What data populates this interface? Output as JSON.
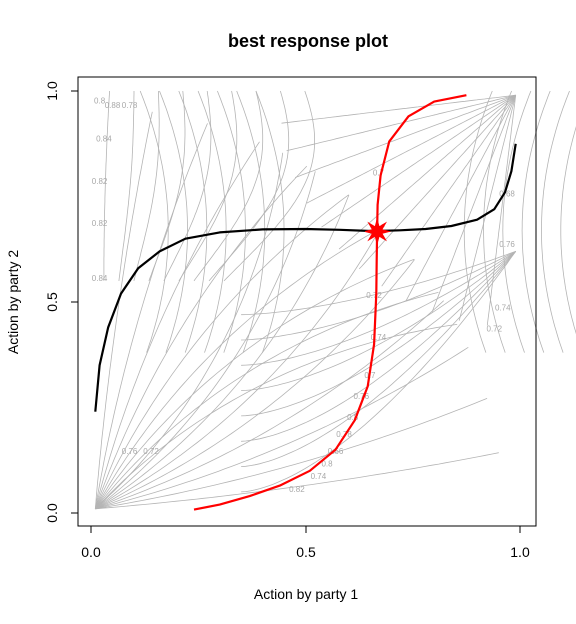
{
  "chart_data": {
    "type": "line",
    "title": "best response plot",
    "xlabel": "Action by party 1",
    "ylabel": "Action by party 2",
    "xlim": [
      0,
      1
    ],
    "ylim": [
      0,
      1
    ],
    "x_ticks": [
      "0.0",
      "0.5",
      "1.0"
    ],
    "y_ticks": [
      "0.0",
      "0.5",
      "1.0"
    ],
    "grid": false,
    "legend": "none",
    "colors": {
      "contour": "#b4b4b4",
      "best_response_1": "#000000",
      "best_response_2": "#ff0000",
      "equilibrium": "#ff0000"
    },
    "contour_labels": [
      {
        "text": "0.8",
        "x": 0.02,
        "y": 0.97
      },
      {
        "text": "0.88",
        "x": 0.05,
        "y": 0.96
      },
      {
        "text": "0.78",
        "x": 0.09,
        "y": 0.96
      },
      {
        "text": "0.84",
        "x": 0.03,
        "y": 0.88
      },
      {
        "text": "0.82",
        "x": 0.02,
        "y": 0.78
      },
      {
        "text": "0.82",
        "x": 0.02,
        "y": 0.68
      },
      {
        "text": "0.84",
        "x": 0.02,
        "y": 0.55
      },
      {
        "text": "0.76",
        "x": 0.09,
        "y": 0.14
      },
      {
        "text": "0.72",
        "x": 0.14,
        "y": 0.14
      },
      {
        "text": "0.7",
        "x": 0.67,
        "y": 0.8
      },
      {
        "text": "0.72",
        "x": 0.66,
        "y": 0.51
      },
      {
        "text": "0.74",
        "x": 0.67,
        "y": 0.41
      },
      {
        "text": "0.7",
        "x": 0.65,
        "y": 0.32
      },
      {
        "text": "0.76",
        "x": 0.63,
        "y": 0.27
      },
      {
        "text": "0.8",
        "x": 0.61,
        "y": 0.22
      },
      {
        "text": "0.78",
        "x": 0.59,
        "y": 0.18
      },
      {
        "text": "0.66",
        "x": 0.57,
        "y": 0.14
      },
      {
        "text": "0.8",
        "x": 0.55,
        "y": 0.11
      },
      {
        "text": "0.74",
        "x": 0.53,
        "y": 0.08
      },
      {
        "text": "0.82",
        "x": 0.48,
        "y": 0.05
      },
      {
        "text": "0.68",
        "x": 0.97,
        "y": 0.75
      },
      {
        "text": "0.76",
        "x": 0.97,
        "y": 0.63
      },
      {
        "text": "0.74",
        "x": 0.96,
        "y": 0.48
      },
      {
        "text": "0.72",
        "x": 0.94,
        "y": 0.43
      }
    ],
    "series": [
      {
        "points": [
          [
            0.01,
            0.24
          ],
          [
            0.02,
            0.35
          ],
          [
            0.04,
            0.44
          ],
          [
            0.07,
            0.52
          ],
          [
            0.11,
            0.58
          ],
          [
            0.16,
            0.62
          ],
          [
            0.22,
            0.65
          ],
          [
            0.3,
            0.665
          ],
          [
            0.4,
            0.672
          ],
          [
            0.5,
            0.673
          ],
          [
            0.58,
            0.671
          ],
          [
            0.66,
            0.668
          ],
          [
            0.72,
            0.67
          ],
          [
            0.78,
            0.673
          ],
          [
            0.84,
            0.68
          ],
          [
            0.9,
            0.695
          ],
          [
            0.94,
            0.72
          ],
          [
            0.965,
            0.76
          ],
          [
            0.98,
            0.81
          ],
          [
            0.99,
            0.875
          ]
        ]
      },
      {
        "points": [
          [
            0.24,
            0.008
          ],
          [
            0.3,
            0.02
          ],
          [
            0.37,
            0.04
          ],
          [
            0.44,
            0.065
          ],
          [
            0.51,
            0.1
          ],
          [
            0.57,
            0.15
          ],
          [
            0.615,
            0.22
          ],
          [
            0.645,
            0.3
          ],
          [
            0.66,
            0.4
          ],
          [
            0.665,
            0.52
          ],
          [
            0.666,
            0.6
          ],
          [
            0.667,
            0.667
          ],
          [
            0.668,
            0.73
          ],
          [
            0.675,
            0.8
          ],
          [
            0.695,
            0.88
          ],
          [
            0.74,
            0.94
          ],
          [
            0.8,
            0.975
          ],
          [
            0.875,
            0.99
          ]
        ]
      }
    ],
    "equilibrium": {
      "x": 0.667,
      "y": 0.667
    }
  }
}
